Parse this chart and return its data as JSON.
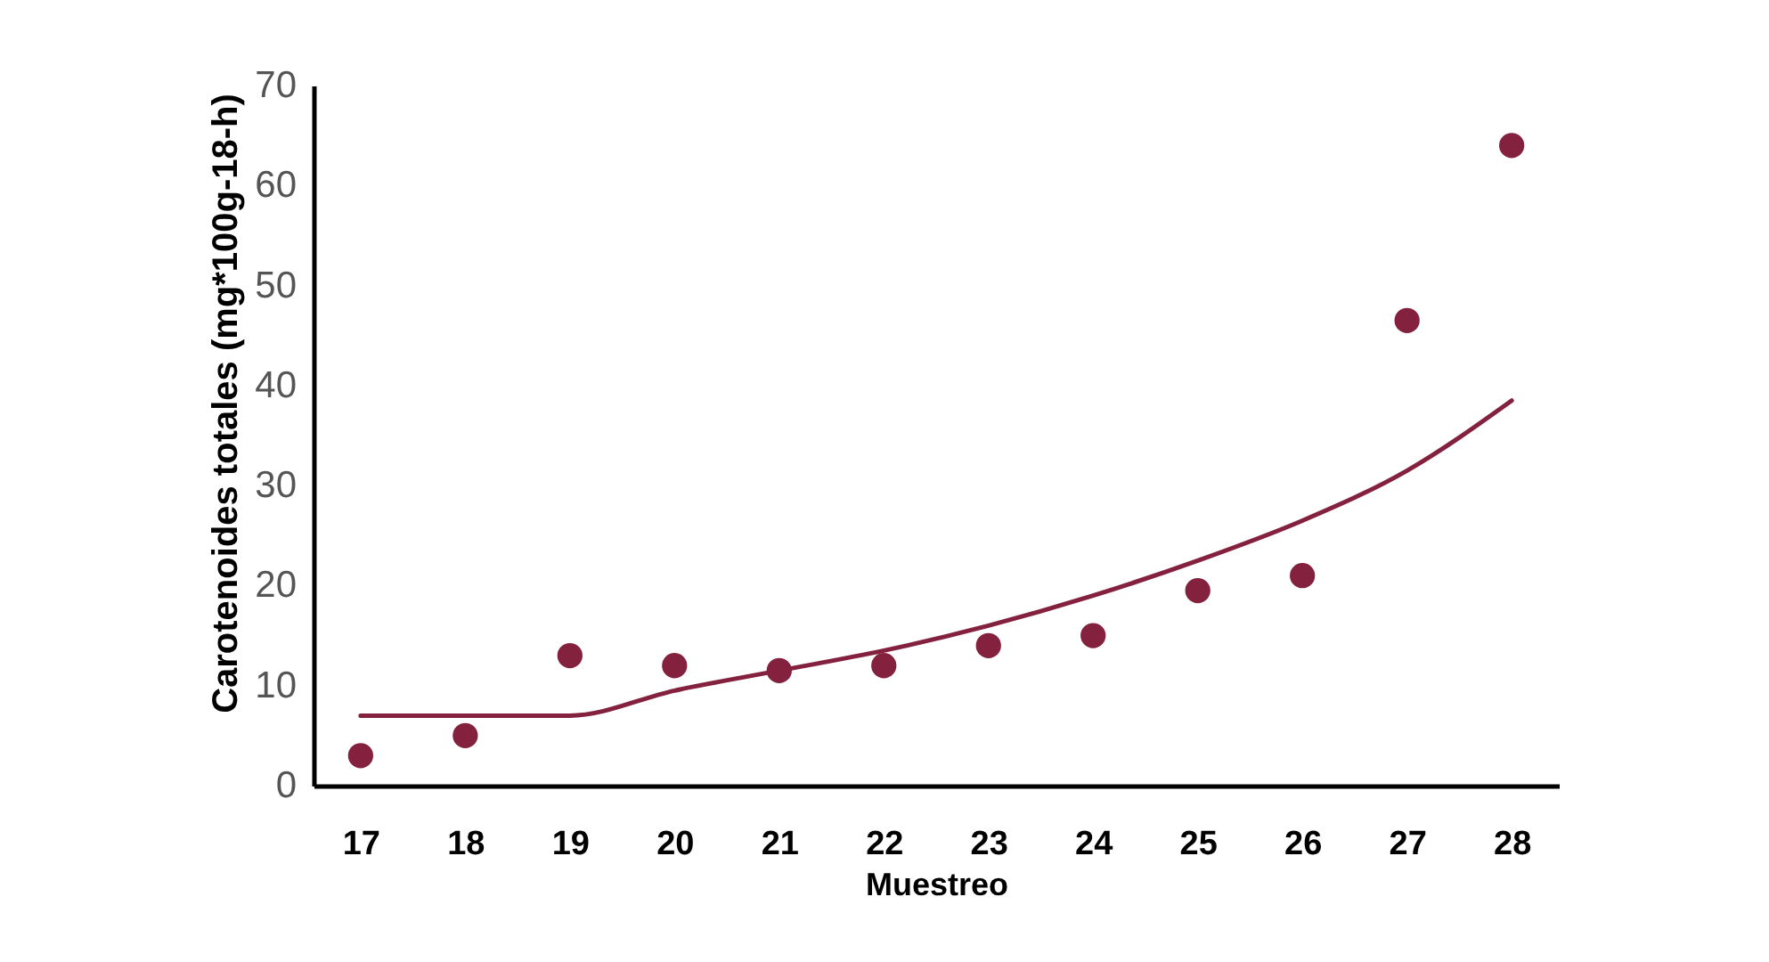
{
  "chart_data": {
    "type": "scatter",
    "xlabel": "Muestreo",
    "ylabel": "Carotenoides totales (mg*100g-18-h)",
    "categories": [
      "17",
      "18",
      "19",
      "20",
      "21",
      "22",
      "23",
      "24",
      "25",
      "26",
      "27",
      "28"
    ],
    "ylim": [
      0,
      70
    ],
    "yticks": [
      0,
      10,
      20,
      30,
      40,
      50,
      60,
      70
    ],
    "series": [
      {
        "marker": "circle",
        "color": "#84213f",
        "values": [
          3,
          5,
          13,
          12,
          11.5,
          12,
          14,
          15,
          19.5,
          21,
          46.5,
          64
        ]
      },
      {
        "type": "line",
        "line_style": "solid",
        "color": "#84213f",
        "values": [
          7,
          7,
          7,
          9.5,
          11.5,
          13.5,
          16,
          19,
          22.5,
          26.5,
          31.5,
          38.5
        ]
      }
    ]
  }
}
